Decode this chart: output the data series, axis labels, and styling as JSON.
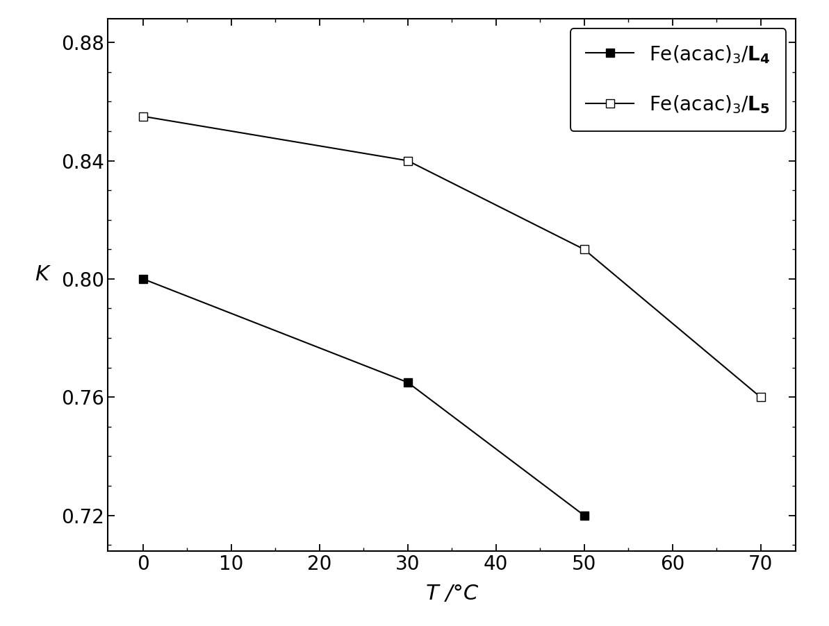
{
  "series1": {
    "x": [
      0,
      30,
      50
    ],
    "y": [
      0.8,
      0.765,
      0.72
    ],
    "marker": "s",
    "fillstyle": "full",
    "color": "black"
  },
  "series2": {
    "x": [
      0,
      30,
      50,
      70
    ],
    "y": [
      0.855,
      0.84,
      0.81,
      0.76
    ],
    "marker": "s",
    "fillstyle": "none",
    "color": "black"
  },
  "xlim": [
    -4,
    74
  ],
  "ylim": [
    0.708,
    0.888
  ],
  "xticks": [
    0,
    10,
    20,
    30,
    40,
    50,
    60,
    70
  ],
  "yticks": [
    0.72,
    0.76,
    0.8,
    0.84,
    0.88
  ],
  "xlabel": "T /°C",
  "ylabel": "K",
  "marker_size": 9,
  "linewidth": 1.5,
  "background_color": "#ffffff",
  "tick_fontsize": 20,
  "label_fontsize": 22,
  "legend_fontsize": 20,
  "label1": "Fe(acac)$_3$/$\\mathbf{L_4}$",
  "label2": "Fe(acac)$_3$/$\\mathbf{L_5}$"
}
